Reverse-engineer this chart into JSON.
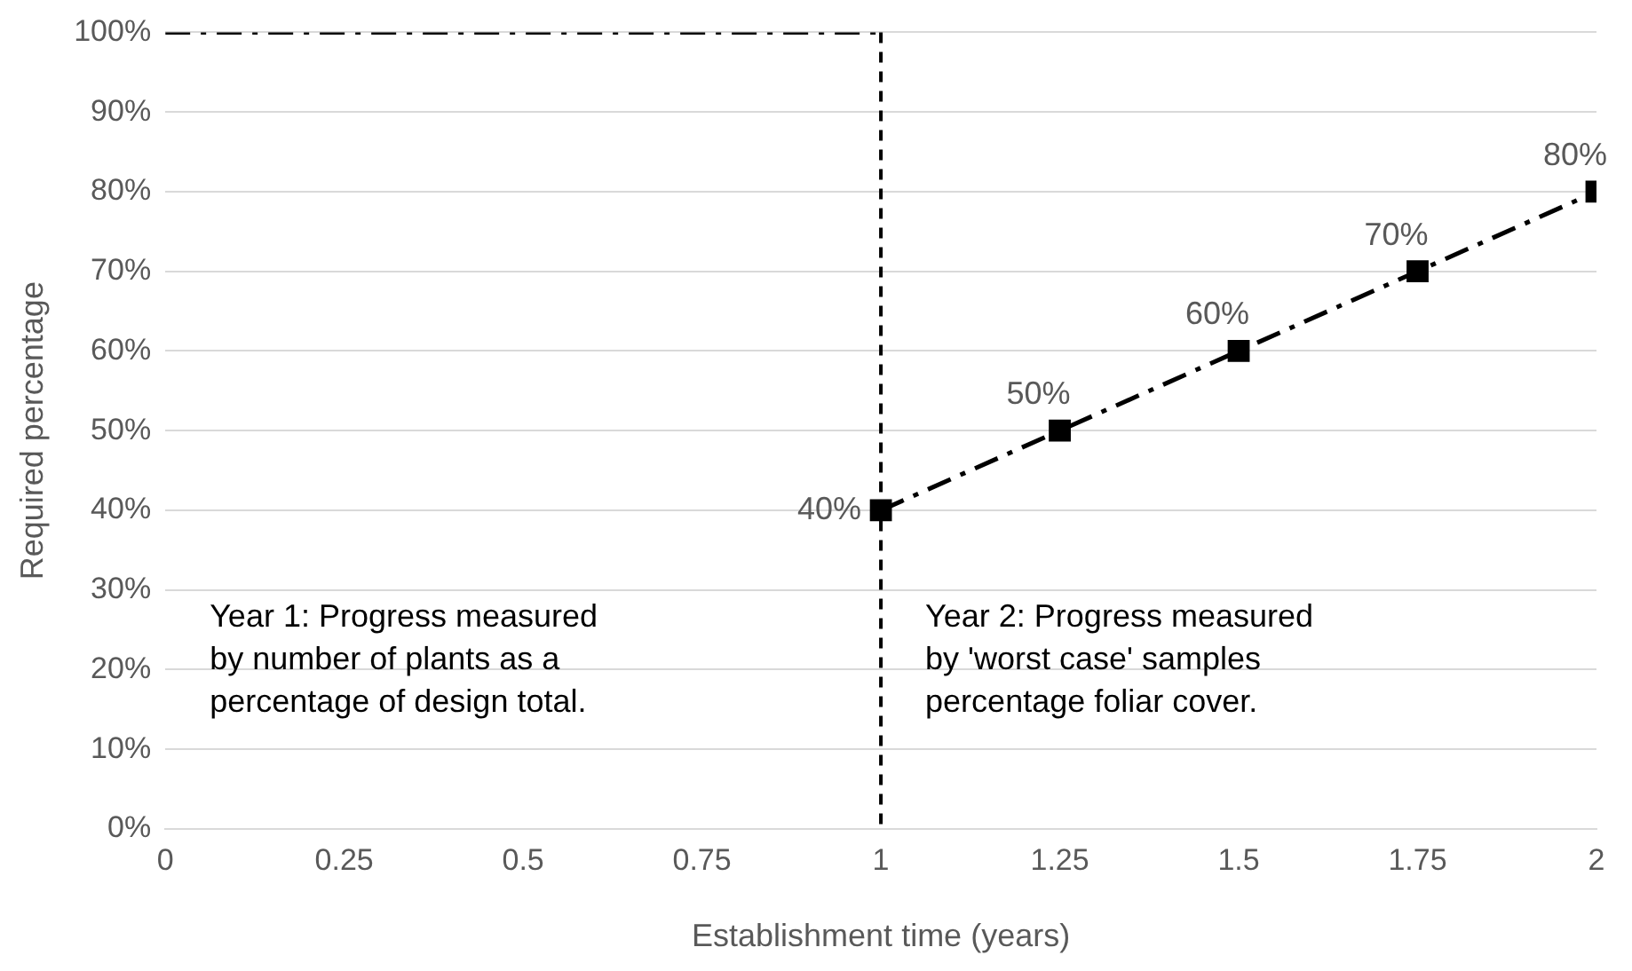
{
  "chart_data": {
    "type": "line",
    "xlabel": "Establishment time (years)",
    "ylabel": "Required percentage",
    "series": [
      {
        "color": "#000000",
        "x": [
          0,
          1
        ],
        "values": [
          100,
          100
        ],
        "marker": "none",
        "line_style": "dashdot"
      },
      {
        "color": "#000000",
        "x": [
          1,
          1.25,
          1.5,
          1.75,
          2
        ],
        "values": [
          40,
          50,
          60,
          70,
          80
        ],
        "marker": "square",
        "line_style": "dashdot",
        "value_labels": [
          "40%",
          "50%",
          "60%",
          "70%",
          "80%"
        ]
      }
    ],
    "xlim": [
      0,
      2
    ],
    "xticks": [
      0,
      0.25,
      0.5,
      0.75,
      1,
      1.25,
      1.5,
      1.75,
      2
    ],
    "ylim": [
      0,
      100
    ],
    "yticks": [
      {
        "value": 0,
        "label": "0%"
      },
      {
        "value": 10,
        "label": "10%"
      },
      {
        "value": 20,
        "label": "20%"
      },
      {
        "value": 30,
        "label": "30%"
      },
      {
        "value": 40,
        "label": "40%"
      },
      {
        "value": 50,
        "label": "50%"
      },
      {
        "value": 60,
        "label": "60%"
      },
      {
        "value": 70,
        "label": "70%"
      },
      {
        "value": 80,
        "label": "80%"
      },
      {
        "value": 90,
        "label": "90%"
      },
      {
        "value": 100,
        "label": "100%"
      }
    ],
    "grid": "y",
    "legend": false,
    "ref_lines": [
      {
        "axis": "x",
        "value": 1,
        "color": "#000000",
        "line_style": "dashed"
      }
    ],
    "annotations": [
      "Year 1: Progress measured\nby number of plants as a\npercentage of design total.",
      "Year 2: Progress measured\nby 'worst case' samples\npercentage foliar cover."
    ]
  }
}
